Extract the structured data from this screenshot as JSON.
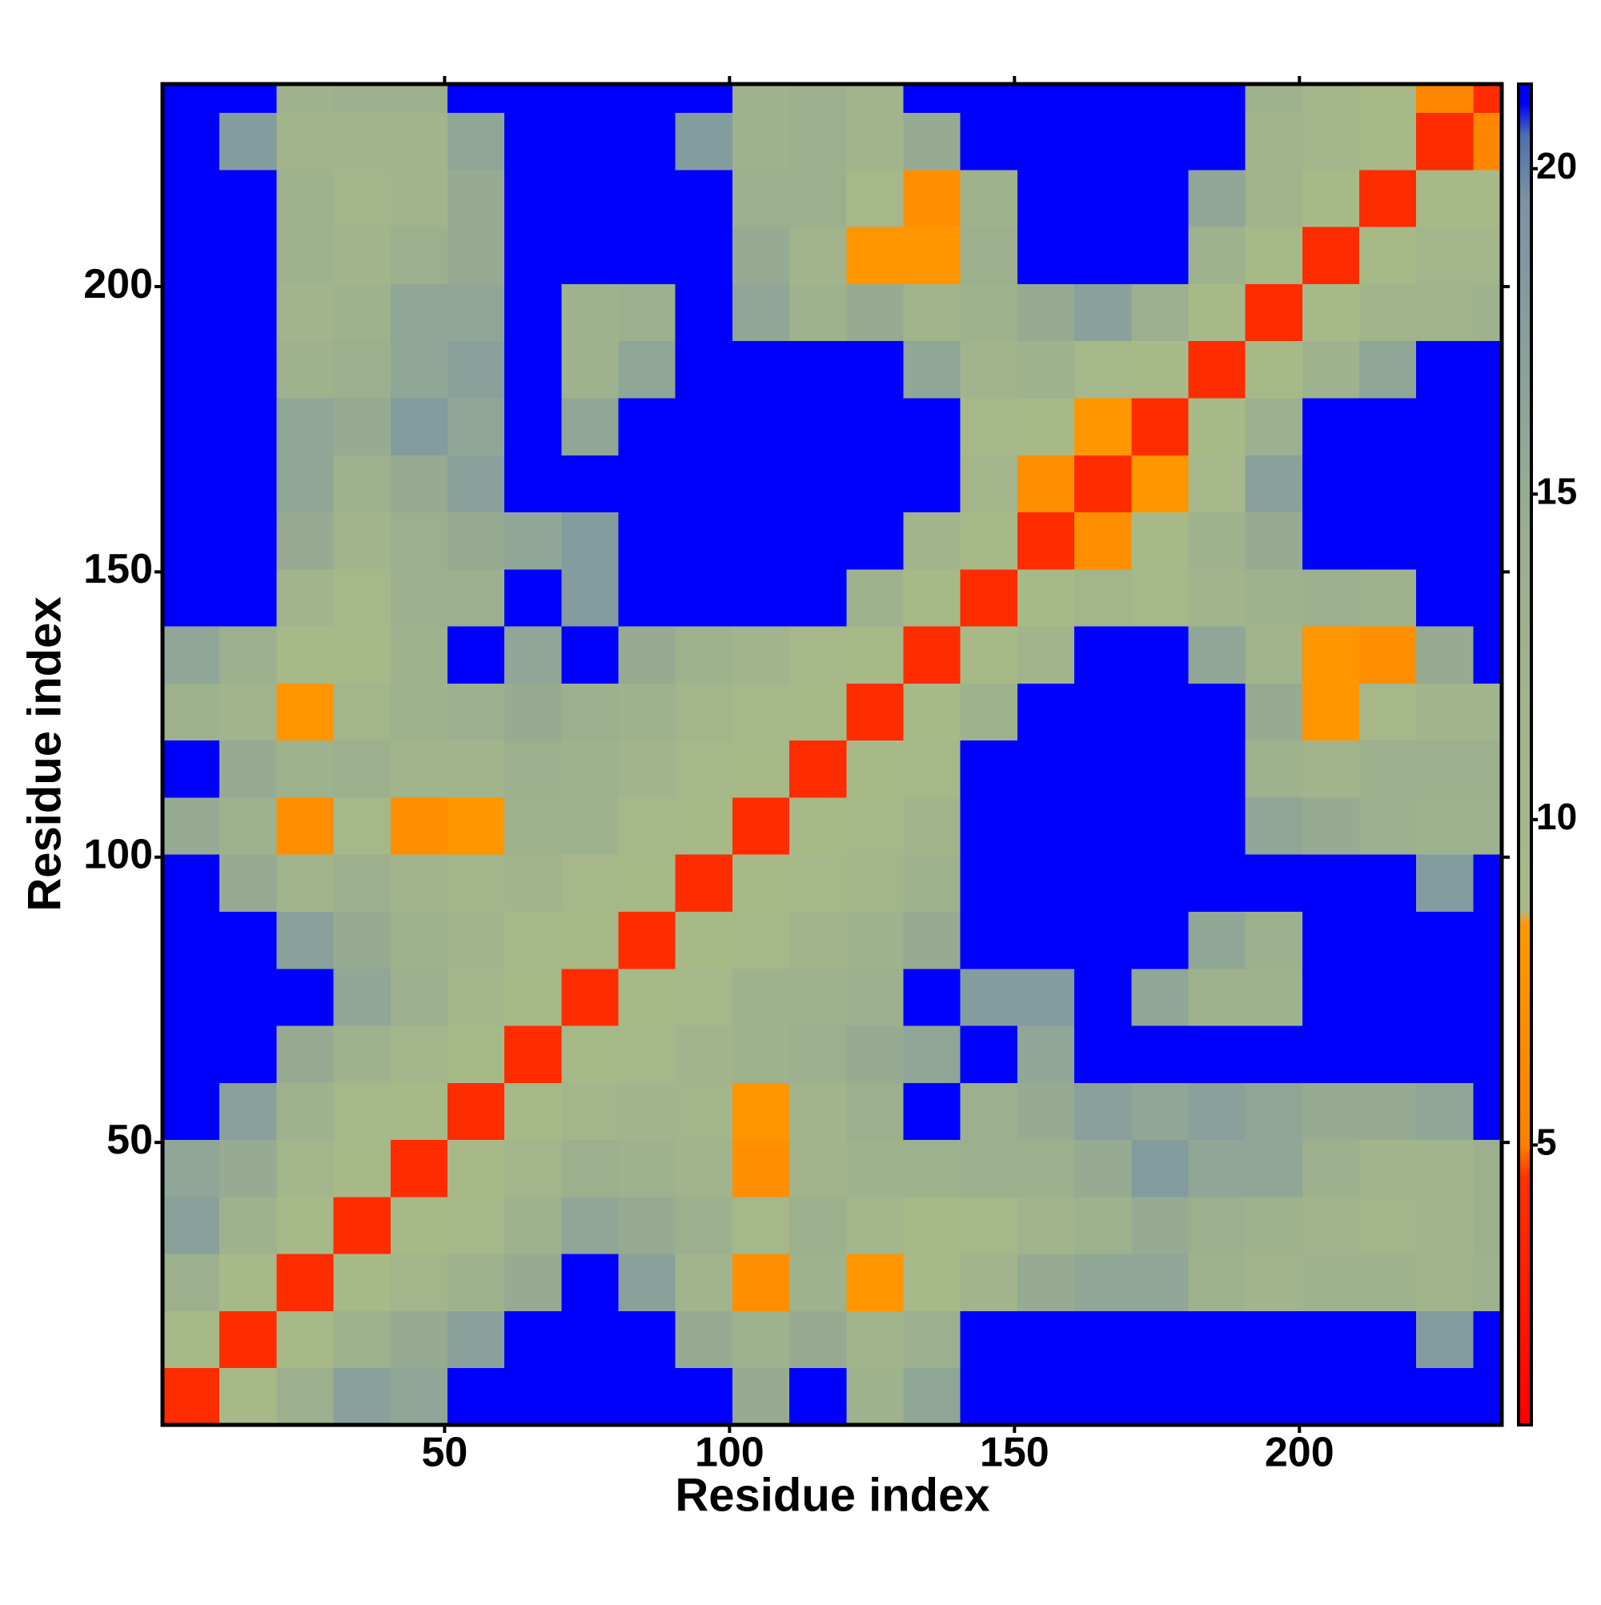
{
  "chart_data": {
    "type": "heatmap",
    "xlabel": "Residue index",
    "ylabel": "Residue index",
    "xbins": [
      0.5,
      10.5,
      20.5,
      30.5,
      40.5,
      50.5,
      60.5,
      70.5,
      80.5,
      90.5,
      100.5,
      110.5,
      120.5,
      130.5,
      140.5,
      150.5,
      160.5,
      170.5,
      180.5,
      190.5,
      200.5,
      210.5,
      220.5,
      230.5,
      235.5
    ],
    "ybins": [
      0.5,
      10.5,
      20.5,
      30.5,
      40.5,
      50.5,
      60.5,
      70.5,
      80.5,
      90.5,
      100.5,
      110.5,
      120.5,
      130.5,
      140.5,
      150.5,
      160.5,
      170.5,
      180.5,
      190.5,
      200.5,
      210.5,
      220.5,
      230.5,
      235.5
    ],
    "z": [
      [
        4,
        9,
        14,
        17,
        16,
        22,
        22,
        22,
        22,
        22,
        15,
        22,
        13,
        16,
        22,
        22,
        22,
        22,
        22,
        22,
        22,
        22,
        22,
        22
      ],
      [
        9,
        4,
        9,
        13,
        15,
        17,
        22,
        22,
        22,
        15,
        13,
        15,
        12,
        14,
        22,
        22,
        22,
        22,
        22,
        22,
        22,
        22,
        18,
        22
      ],
      [
        14,
        9,
        4,
        9,
        11,
        13,
        15,
        22,
        17,
        12,
        7,
        13,
        8,
        9,
        12,
        15,
        16,
        16,
        13,
        12,
        13,
        13,
        12,
        13
      ],
      [
        17,
        13,
        9,
        4,
        9,
        10,
        13,
        16,
        15,
        14,
        10,
        14,
        11,
        9,
        10,
        12,
        13,
        15,
        14,
        13,
        12,
        11,
        12,
        14
      ],
      [
        16,
        15,
        11,
        9,
        4,
        9,
        11,
        14,
        13,
        12,
        7,
        12,
        13,
        13,
        14,
        14,
        15,
        18,
        16,
        16,
        14,
        12,
        12,
        14
      ],
      [
        22,
        17,
        13,
        10,
        9,
        4,
        9,
        11,
        12,
        11,
        8,
        12,
        14,
        22,
        14,
        15,
        17,
        16,
        17,
        16,
        15,
        15,
        16,
        22
      ],
      [
        22,
        22,
        15,
        13,
        11,
        9,
        4,
        9,
        10,
        12,
        13,
        14,
        15,
        16,
        22,
        16,
        22,
        22,
        22,
        22,
        22,
        22,
        22,
        22
      ],
      [
        22,
        22,
        22,
        16,
        14,
        11,
        9,
        4,
        9,
        10,
        13,
        13,
        14,
        22,
        18,
        18,
        22,
        16,
        13,
        13,
        22,
        22,
        22,
        22
      ],
      [
        22,
        22,
        17,
        15,
        13,
        12,
        10,
        9,
        4,
        9,
        10,
        12,
        13,
        15,
        22,
        22,
        22,
        22,
        16,
        14,
        22,
        22,
        22,
        22
      ],
      [
        22,
        15,
        12,
        14,
        12,
        11,
        12,
        10,
        9,
        4,
        9,
        10,
        11,
        13,
        22,
        22,
        22,
        22,
        22,
        22,
        22,
        22,
        18,
        22
      ],
      [
        15,
        13,
        7,
        10,
        7,
        8,
        13,
        13,
        10,
        9,
        4,
        9,
        10,
        12,
        22,
        22,
        22,
        22,
        22,
        16,
        15,
        14,
        13,
        13
      ],
      [
        22,
        15,
        13,
        14,
        12,
        12,
        14,
        13,
        12,
        10,
        9,
        4,
        9,
        10,
        22,
        22,
        22,
        22,
        22,
        13,
        12,
        14,
        14,
        14
      ],
      [
        13,
        12,
        8,
        11,
        13,
        14,
        15,
        14,
        13,
        11,
        10,
        9,
        4,
        9,
        13,
        22,
        22,
        22,
        22,
        15,
        8,
        10,
        12,
        12
      ],
      [
        16,
        14,
        9,
        9,
        13,
        22,
        16,
        22,
        15,
        13,
        12,
        10,
        9,
        4,
        9,
        12,
        22,
        22,
        16,
        12,
        8,
        7,
        15,
        22
      ],
      [
        22,
        22,
        12,
        10,
        14,
        14,
        22,
        18,
        22,
        22,
        22,
        22,
        13,
        9,
        4,
        9,
        11,
        10,
        12,
        13,
        14,
        13,
        22,
        22
      ],
      [
        22,
        22,
        15,
        12,
        14,
        15,
        16,
        18,
        22,
        22,
        22,
        22,
        22,
        12,
        9,
        4,
        7,
        9,
        13,
        15,
        22,
        22,
        22,
        22
      ],
      [
        22,
        22,
        16,
        13,
        15,
        17,
        22,
        22,
        22,
        22,
        22,
        22,
        22,
        22,
        11,
        7,
        4,
        8,
        10,
        17,
        22,
        22,
        22,
        22
      ],
      [
        22,
        22,
        16,
        15,
        18,
        16,
        22,
        16,
        22,
        22,
        22,
        22,
        22,
        22,
        10,
        9,
        8,
        4,
        9,
        14,
        22,
        22,
        22,
        22
      ],
      [
        22,
        22,
        13,
        14,
        16,
        17,
        22,
        13,
        16,
        22,
        22,
        22,
        22,
        16,
        12,
        13,
        10,
        9,
        4,
        9,
        13,
        16,
        22,
        22
      ],
      [
        22,
        22,
        12,
        13,
        16,
        16,
        22,
        13,
        14,
        22,
        16,
        13,
        15,
        12,
        13,
        15,
        17,
        14,
        9,
        4,
        9,
        12,
        12,
        13
      ],
      [
        22,
        22,
        13,
        12,
        14,
        15,
        22,
        22,
        22,
        22,
        15,
        12,
        8,
        8,
        14,
        22,
        22,
        22,
        13,
        9,
        4,
        9,
        11,
        11
      ],
      [
        22,
        22,
        13,
        11,
        12,
        15,
        22,
        22,
        22,
        22,
        14,
        14,
        10,
        7,
        13,
        22,
        22,
        22,
        16,
        12,
        9,
        4,
        9,
        9
      ],
      [
        22,
        18,
        12,
        12,
        12,
        16,
        22,
        22,
        22,
        18,
        13,
        14,
        12,
        15,
        22,
        22,
        22,
        22,
        22,
        12,
        11,
        9,
        4,
        6
      ],
      [
        22,
        22,
        13,
        14,
        14,
        22,
        22,
        22,
        22,
        22,
        13,
        14,
        12,
        22,
        22,
        22,
        22,
        22,
        22,
        13,
        11,
        9,
        6,
        4
      ]
    ],
    "xlim": [
      0.5,
      235.5
    ],
    "ylim": [
      0.5,
      235.5
    ],
    "xticks": [
      50,
      100,
      150,
      200
    ],
    "yticks": [
      50,
      100,
      150,
      200
    ],
    "colorbar": {
      "lim": [
        0.7,
        21.3
      ],
      "ticks": [
        5,
        10,
        15,
        20
      ]
    },
    "colorscale": [
      [
        0.7,
        "#ff0000"
      ],
      [
        4.5,
        "#ff3300"
      ],
      [
        5,
        "#ff8000"
      ],
      [
        8.4,
        "#ff9900"
      ],
      [
        8.6,
        "#a9ba88"
      ],
      [
        14,
        "#9cb08e"
      ],
      [
        19.5,
        "#7a94a4"
      ],
      [
        20.5,
        "#4f6fb0"
      ],
      [
        21,
        "#0000ff"
      ],
      [
        21.3,
        "#0000ff"
      ]
    ]
  }
}
